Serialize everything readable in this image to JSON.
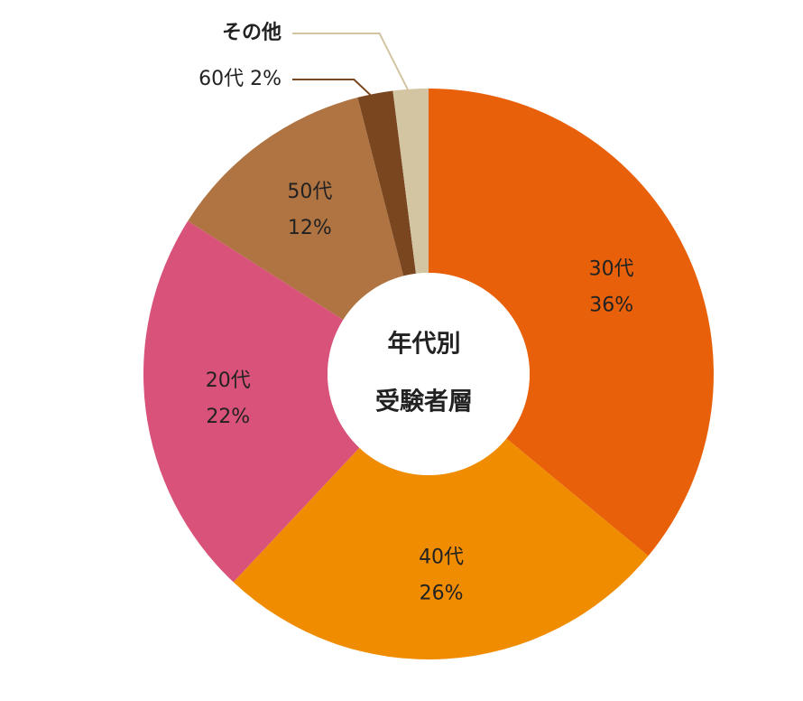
{
  "chart_data": {
    "type": "donut",
    "center_text_lines": [
      "年代別",
      "受験者層"
    ],
    "categories": [
      "30代",
      "40代",
      "20代",
      "50代",
      "60代",
      "その他"
    ],
    "values": [
      36,
      26,
      22,
      12,
      2,
      2
    ],
    "value_labels": [
      "36%",
      "26%",
      "22%",
      "12%",
      "2%",
      null
    ],
    "colors": [
      "#e8610a",
      "#f08c00",
      "#d9527a",
      "#b07442",
      "#7a461f",
      "#d3c4a2"
    ]
  }
}
